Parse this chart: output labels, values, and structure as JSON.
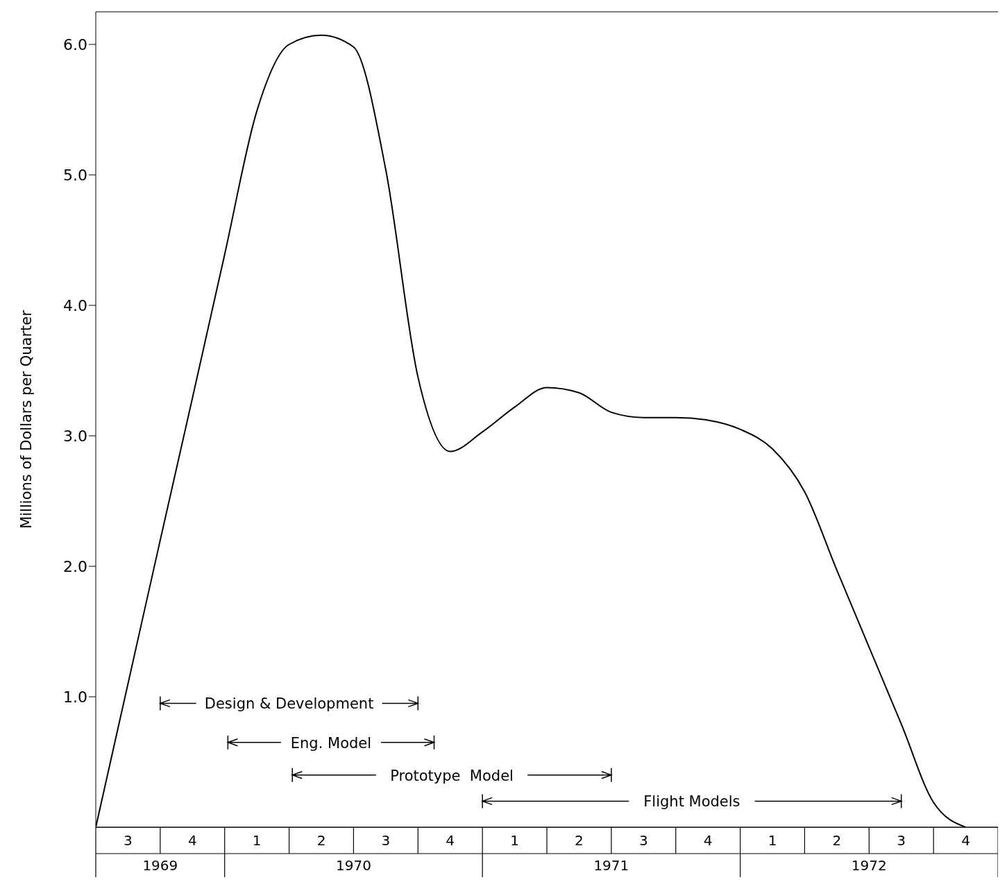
{
  "chart_data": {
    "type": "line",
    "ylabel": "Millions of Dollars per Quarter",
    "categories": [
      null,
      "3",
      null,
      "4",
      null,
      "1",
      null,
      "2",
      null,
      "3",
      null,
      "4",
      null,
      "1",
      null,
      "2",
      null,
      "3",
      null,
      "4",
      null,
      "1",
      null,
      "2",
      null,
      "3",
      null,
      "4",
      null
    ],
    "series": [
      {
        "color": "#000000",
        "values": [
          0,
          1.1,
          2.2,
          3.29,
          4.39,
          5.49,
          6.0,
          6.07,
          5.98,
          5.04,
          3.45,
          2.88,
          3.03,
          3.22,
          3.37,
          3.33,
          3.18,
          3.14,
          3.14,
          3.12,
          3.05,
          2.9,
          2.57,
          1.97,
          1.38,
          0.79,
          0.19,
          0,
          null
        ]
      }
    ],
    "ylim": [
      0,
      6.25
    ],
    "yticks": [
      {
        "value": 1,
        "label": "1.0"
      },
      {
        "value": 2,
        "label": "2.0"
      },
      {
        "value": 3,
        "label": "3.0"
      },
      {
        "value": 4,
        "label": "4.0"
      },
      {
        "value": 5,
        "label": "5.0"
      },
      {
        "value": 6,
        "label": "6.0"
      }
    ],
    "annotations": [
      "1969",
      "1970",
      "1971",
      "1972",
      "Design & Development",
      "Eng. Model",
      "Prototype  Model",
      "Flight Models"
    ]
  }
}
